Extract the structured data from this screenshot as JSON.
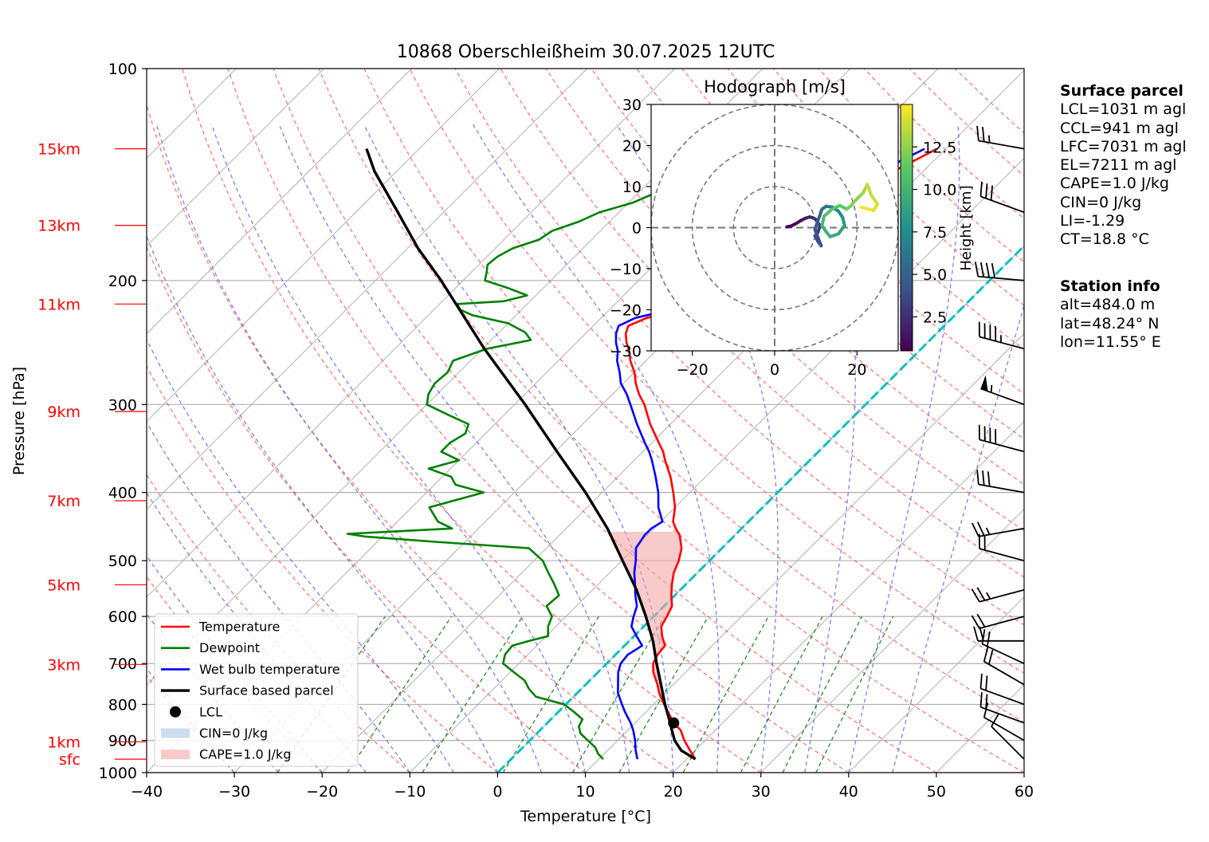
{
  "chart_data": [
    {
      "type": "line",
      "title": "10868 Oberschleißheim 30.07.2025 12UTC",
      "xlabel": "Temperature [°C]",
      "ylabel": "Pressure [hPa]",
      "xlim": [
        -40,
        60
      ],
      "ylim": [
        1000,
        100
      ],
      "log_scale_y": true,
      "skew": true,
      "grid": true,
      "x_ticks": [
        "−40",
        "−30",
        "−20",
        "−10",
        "0",
        "10",
        "20",
        "30",
        "40",
        "50",
        "60"
      ],
      "y_ticks": [
        "100",
        "200",
        "300",
        "400",
        "500",
        "600",
        "700",
        "800",
        "900",
        "1000"
      ],
      "height_labels": [
        {
          "label": "15km",
          "p": 130
        },
        {
          "label": "13km",
          "p": 167
        },
        {
          "label": "11km",
          "p": 216
        },
        {
          "label": "9km",
          "p": 307
        },
        {
          "label": "7km",
          "p": 411
        },
        {
          "label": "5km",
          "p": 541
        },
        {
          "label": "3km",
          "p": 702
        },
        {
          "label": "1km",
          "p": 904
        },
        {
          "label": "sfc",
          "p": 957
        }
      ],
      "series": [
        {
          "name": "Temperature",
          "color": "#ff0000",
          "p": [
            957,
            930,
            900,
            870,
            850,
            820,
            800,
            770,
            750,
            720,
            700,
            680,
            660,
            640,
            620,
            600,
            580,
            560,
            540,
            520,
            500,
            480,
            460,
            450,
            440,
            420,
            400,
            380,
            360,
            350,
            340,
            320,
            300,
            290,
            280,
            270,
            260,
            252,
            245,
            238,
            232,
            226,
            222,
            216,
            211,
            205,
            200,
            195,
            190,
            186,
            180,
            176,
            170,
            165,
            160,
            155,
            150,
            145,
            140,
            135,
            130
          ],
          "t": [
            21.0,
            19.4,
            17.6,
            16.0,
            14.4,
            12.5,
            11.2,
            9.3,
            8.2,
            6.3,
            5.3,
            4.8,
            4.6,
            3.2,
            2.0,
            1.5,
            0.9,
            -0.4,
            -1.6,
            -2.7,
            -3.5,
            -4.6,
            -6.3,
            -7.5,
            -8.6,
            -10.0,
            -11.9,
            -14.0,
            -16.5,
            -17.7,
            -19.2,
            -22.3,
            -25.2,
            -27.0,
            -28.6,
            -30.0,
            -31.8,
            -33.0,
            -34.3,
            -35.4,
            -36.0,
            -34.8,
            -32.7,
            -30.9,
            -29.6,
            -28.7,
            -27.8,
            -27.2,
            -26.9,
            -26.6,
            -26.0,
            -25.9,
            -25.9,
            -25.3,
            -24.7,
            -24.4,
            -24.4,
            -24.2,
            -23.4,
            -22.2,
            -21.0
          ]
        },
        {
          "name": "Dewpoint",
          "color": "#008000",
          "p": [
            957,
            940,
            920,
            900,
            880,
            860,
            840,
            820,
            800,
            780,
            760,
            740,
            720,
            700,
            680,
            660,
            650,
            640,
            620,
            600,
            580,
            560,
            540,
            520,
            500,
            480,
            470,
            462,
            458,
            450,
            440,
            420,
            400,
            390,
            380,
            370,
            360,
            350,
            340,
            330,
            320,
            310,
            300,
            290,
            280,
            270,
            260,
            250,
            243,
            237,
            230,
            224,
            220,
            216,
            214,
            210,
            205,
            200,
            195,
            190,
            185,
            180,
            175,
            170,
            165,
            160,
            155,
            150,
            145,
            140,
            135,
            130
          ],
          "t": [
            10.5,
            9.3,
            8.2,
            6.6,
            5.0,
            4.0,
            3.6,
            1.8,
            -0.2,
            -4.3,
            -6.0,
            -7.4,
            -9.6,
            -11.8,
            -12.6,
            -12.8,
            -11.4,
            -9.8,
            -10.9,
            -11.6,
            -13.4,
            -13.2,
            -15.0,
            -17.0,
            -19.0,
            -22.0,
            -33.4,
            -42.0,
            -44.3,
            -33.0,
            -35.4,
            -38.0,
            -33.5,
            -37.6,
            -39.0,
            -42.5,
            -40.0,
            -43.0,
            -43.0,
            -42.3,
            -43.0,
            -46.5,
            -50.0,
            -51.0,
            -51.5,
            -51.3,
            -52.0,
            -49.5,
            -45.5,
            -47.0,
            -50.0,
            -55.0,
            -57.0,
            -58.0,
            -53.0,
            -51.0,
            -54.0,
            -57.5,
            -58.2,
            -59.0,
            -58.8,
            -58.0,
            -56.0,
            -55.5,
            -53.5,
            -52.2,
            -49.5,
            -48.0,
            -46.0,
            -44.0,
            -42.0,
            -40.0
          ]
        },
        {
          "name": "Wet bulb temperature",
          "color": "#0000ff",
          "p": [
            957,
            930,
            900,
            870,
            850,
            820,
            800,
            770,
            750,
            720,
            700,
            680,
            660,
            640,
            620,
            600,
            580,
            560,
            540,
            520,
            500,
            480,
            460,
            450,
            440,
            420,
            400,
            380,
            360,
            350,
            340,
            320,
            300,
            290,
            280,
            270,
            260,
            252,
            245,
            238,
            232,
            226,
            222,
            216,
            211,
            205,
            200,
            195,
            190,
            186,
            180,
            176,
            170,
            165,
            160,
            155,
            150,
            145,
            140,
            135,
            130
          ],
          "t": [
            14.4,
            13.2,
            12.0,
            10.6,
            9.5,
            7.6,
            6.4,
            4.6,
            3.7,
            2.3,
            1.6,
            1.4,
            2.0,
            0.3,
            -1.4,
            -2.3,
            -3.1,
            -4.5,
            -5.8,
            -7.2,
            -8.4,
            -9.8,
            -10.3,
            -10.3,
            -9.8,
            -11.9,
            -13.6,
            -15.7,
            -18.0,
            -19.3,
            -20.8,
            -23.8,
            -26.8,
            -28.4,
            -30.3,
            -31.7,
            -33.3,
            -34.3,
            -35.5,
            -36.5,
            -37.1,
            -36.1,
            -34.0,
            -32.3,
            -31.0,
            -30.0,
            -29.2,
            -28.6,
            -28.3,
            -28.0,
            -27.5,
            -27.4,
            -27.4,
            -26.9,
            -26.3,
            -26.0,
            -26.0,
            -25.8,
            -25.0,
            -23.7,
            -22.4
          ]
        },
        {
          "name": "Surface based parcel",
          "color": "#000000",
          "p": [
            957,
            930,
            900,
            870,
            850,
            800,
            750,
            700,
            650,
            600,
            550,
            500,
            450,
            400,
            350,
            300,
            250,
            200,
            180,
            160,
            140,
            130
          ],
          "t": [
            21.0,
            18.4,
            16.5,
            15.0,
            14.0,
            11.3,
            8.6,
            5.7,
            2.7,
            -0.9,
            -5.0,
            -9.9,
            -15.3,
            -21.9,
            -29.8,
            -38.8,
            -49.8,
            -62.5,
            -68.8,
            -75.2,
            -82.5,
            -86.0
          ]
        }
      ],
      "lcl": {
        "name": "LCL",
        "p": 850,
        "t": 14.4
      },
      "cape_fill": {
        "name": "CAPE=1.0 J/kg",
        "color": "#f4a6a6"
      },
      "cin_fill": {
        "name": "CIN=0 J/kg",
        "color": "#a9c8e8"
      },
      "wet_bulb_zero_line": {
        "color": "#00c0c0"
      },
      "legend": {
        "placement": "lower-left",
        "entries": [
          "Temperature",
          "Dewpoint",
          "Wet bulb temperature",
          "Surface based parcel",
          "LCL",
          "CIN=0 J/kg",
          "CAPE=1.0 J/kg"
        ]
      },
      "wind_barbs": [
        {
          "p": 957,
          "speed_kt": 10,
          "dir_deg": 315
        },
        {
          "p": 900,
          "speed_kt": 10,
          "dir_deg": 300
        },
        {
          "p": 850,
          "speed_kt": 20,
          "dir_deg": 290
        },
        {
          "p": 800,
          "speed_kt": 20,
          "dir_deg": 290
        },
        {
          "p": 750,
          "speed_kt": 20,
          "dir_deg": 300
        },
        {
          "p": 700,
          "speed_kt": 20,
          "dir_deg": 295
        },
        {
          "p": 650,
          "speed_kt": 20,
          "dir_deg": 270
        },
        {
          "p": 600,
          "speed_kt": 20,
          "dir_deg": 255
        },
        {
          "p": 550,
          "speed_kt": 25,
          "dir_deg": 255
        },
        {
          "p": 500,
          "speed_kt": 20,
          "dir_deg": 285
        },
        {
          "p": 450,
          "speed_kt": 25,
          "dir_deg": 260
        },
        {
          "p": 400,
          "speed_kt": 30,
          "dir_deg": 280
        },
        {
          "p": 350,
          "speed_kt": 40,
          "dir_deg": 285
        },
        {
          "p": 300,
          "speed_kt": 55,
          "dir_deg": 290
        },
        {
          "p": 250,
          "speed_kt": 45,
          "dir_deg": 285
        },
        {
          "p": 200,
          "speed_kt": 40,
          "dir_deg": 275
        },
        {
          "p": 160,
          "speed_kt": 30,
          "dir_deg": 290
        },
        {
          "p": 130,
          "speed_kt": 25,
          "dir_deg": 280
        }
      ]
    },
    {
      "type": "scatter",
      "title": "Hodograph [m/s]",
      "xlim": [
        -30,
        30
      ],
      "ylim": [
        -30,
        30
      ],
      "x_ticks": [
        -20,
        0,
        20
      ],
      "y_ticks": [
        30,
        20,
        10,
        0,
        -10,
        -20,
        -30
      ],
      "x_tick_labels": [
        "−20",
        "0",
        "20"
      ],
      "y_tick_labels": [
        "30",
        "20",
        "10",
        "0",
        "−10",
        "−20",
        "−30"
      ],
      "rings": [
        10,
        20,
        30
      ],
      "colorbar": {
        "label": "Height [km]",
        "ticks": [
          "12.5",
          "10.0",
          "7.5",
          "5.0",
          "2.5"
        ],
        "range": [
          0.5,
          15
        ]
      },
      "points": {
        "u": [
          3.0,
          4.0,
          5.2,
          6.5,
          7.5,
          8.5,
          9.3,
          10.0,
          11.0,
          10.5,
          9.8,
          10.6,
          11.0,
          11.3,
          9.8,
          10.2,
          11.5,
          12.5,
          14.0,
          15.5,
          16.5,
          17.0,
          15.5,
          13.5,
          12.5,
          11.5,
          12.0,
          13.8,
          15.8,
          17.5,
          18.5,
          19.5,
          20.5,
          21.5,
          22.0,
          22.5,
          23.5,
          25.0,
          24.0,
          23.2,
          21.0
        ],
        "v": [
          0.2,
          0.4,
          1.0,
          1.8,
          2.3,
          2.6,
          2.4,
          2.0,
          0.5,
          -1.2,
          -2.0,
          -3.5,
          -4.0,
          -4.4,
          -0.5,
          0.8,
          4.5,
          5.2,
          5.0,
          4.0,
          2.5,
          0.5,
          -1.5,
          -2.2,
          -1.0,
          0.5,
          2.8,
          4.4,
          5.4,
          4.5,
          5.3,
          6.5,
          7.5,
          8.5,
          9.5,
          10.5,
          7.8,
          5.7,
          4.2,
          4.4,
          5.0
        ],
        "height_km": [
          0.5,
          0.8,
          1.1,
          1.4,
          1.8,
          2.1,
          2.4,
          2.7,
          3.0,
          3.3,
          3.6,
          3.8,
          4.0,
          4.2,
          4.6,
          5.0,
          5.6,
          6.2,
          6.8,
          7.4,
          8.0,
          8.6,
          9.1,
          9.5,
          9.8,
          10.2,
          10.6,
          11.0,
          11.4,
          11.8,
          12.1,
          12.4,
          12.7,
          13.0,
          13.3,
          13.6,
          13.9,
          14.2,
          14.5,
          14.8,
          15.0
        ]
      }
    }
  ],
  "surface_parcel": {
    "header": "Surface parcel",
    "lines": [
      "LCL=1031 m agl",
      "CCL=941 m agl",
      "LFC=7031 m agl",
      "EL=7211 m agl",
      "CAPE=1.0 J/kg",
      "CIN=0 J/kg",
      "LI=-1.29",
      "CT=18.8 °C"
    ]
  },
  "station_info": {
    "header": "Station info",
    "lines": [
      "alt=484.0 m",
      "lat=48.24° N",
      "lon=11.55° E"
    ]
  }
}
